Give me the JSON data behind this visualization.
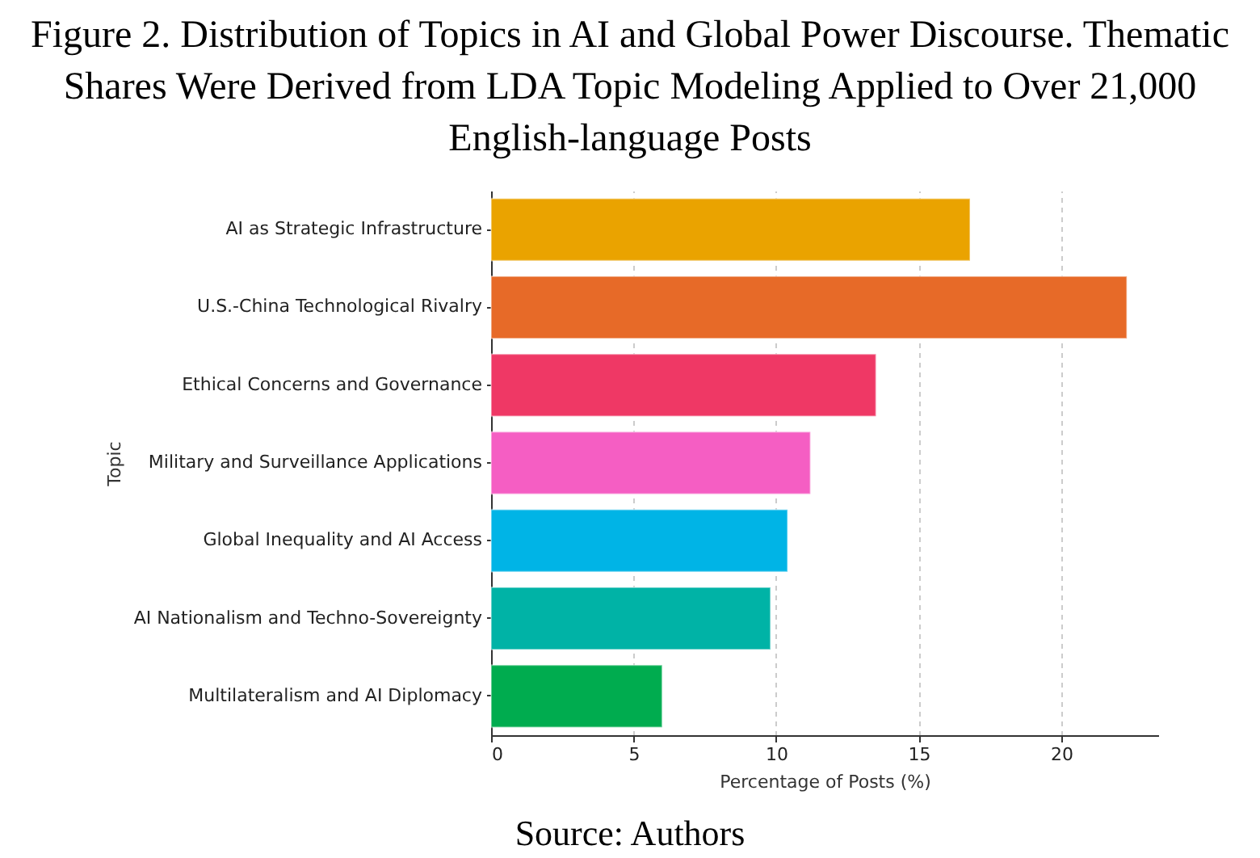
{
  "chart_data": {
    "type": "bar",
    "orientation": "horizontal",
    "title": "Figure 2. Distribution of Topics in AI and Global Power Discourse. Thematic Shares Were Derived from LDA Topic Modeling Applied to Over 21,000 English-language Posts",
    "xlabel": "Percentage of Posts (%)",
    "ylabel": "Topic",
    "categories": [
      "AI as Strategic Infrastructure",
      "U.S.-China Technological Rivalry",
      "Ethical Concerns and Governance",
      "Military and Surveillance Applications",
      "Global Inequality and AI Access",
      "AI Nationalism and Techno-Sovereignty",
      "Multilateralism and AI Diplomacy"
    ],
    "values": [
      16.8,
      22.3,
      13.5,
      11.2,
      10.4,
      9.8,
      6.0
    ],
    "colors": [
      "#eaa300",
      "#e76a28",
      "#ef3865",
      "#f55ec3",
      "#00b4e6",
      "#00b3a6",
      "#00ac4f"
    ],
    "xlim": [
      0,
      23.4
    ],
    "xticks": [
      0,
      5,
      10,
      15,
      20
    ],
    "grid": "x",
    "annotations": [
      "Source: Authors"
    ]
  }
}
